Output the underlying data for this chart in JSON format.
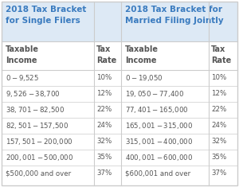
{
  "title_single": "2018 Tax Bracket\nfor Single Filers",
  "title_married": "2018 Tax Bracket for\nMarried Filing Jointly",
  "header_income": "Taxable\nIncome",
  "header_rate": "Tax\nRate",
  "single_income": [
    "$0 - $9,525",
    "$9,526 - $38,700",
    "$38,701 - $82,500",
    "$82,501 - $157,500",
    "$157,501 - $200,000",
    "$200,001 - $500,000",
    "$500,000 and over"
  ],
  "married_income": [
    "$0 - $19,050",
    "$19,050 - $77,400",
    "$77,401 - $165,000",
    "$165,001 - $315,000",
    "$315,001 - $400,000",
    "$400,001 - $600,000",
    "$600,001 and over"
  ],
  "rates": [
    "10%",
    "12%",
    "22%",
    "24%",
    "32%",
    "35%",
    "37%"
  ],
  "bg_color": "#ffffff",
  "title_color": "#3a7bbf",
  "text_color": "#555555",
  "line_color": "#cccccc",
  "title_bg": "#dde9f5"
}
